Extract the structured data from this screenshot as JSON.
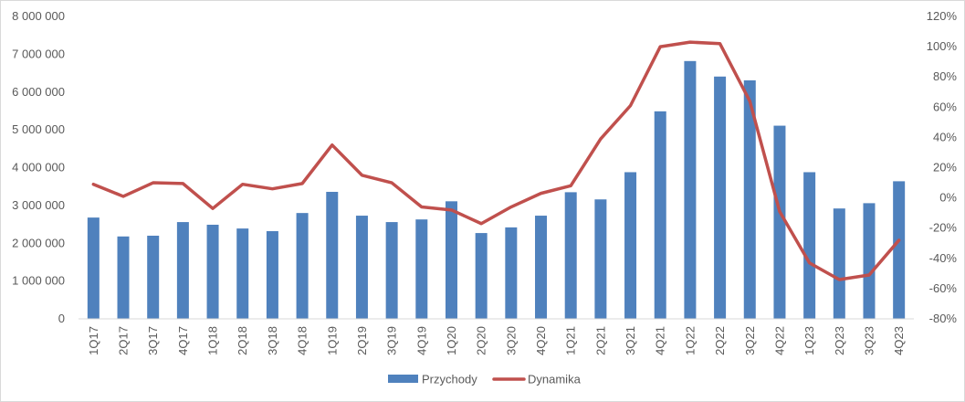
{
  "chart_data": {
    "type": "bar",
    "categories": [
      "1Q17",
      "2Q17",
      "3Q17",
      "4Q17",
      "1Q18",
      "2Q18",
      "3Q18",
      "4Q18",
      "1Q19",
      "2Q19",
      "3Q19",
      "4Q19",
      "1Q20",
      "2Q20",
      "3Q20",
      "4Q20",
      "1Q21",
      "2Q21",
      "3Q21",
      "4Q21",
      "1Q22",
      "2Q22",
      "3Q22",
      "4Q22",
      "1Q23",
      "2Q23",
      "3Q23",
      "4Q23"
    ],
    "series": [
      {
        "name": "Przychody",
        "type": "bar",
        "axis": "left",
        "color": "#4F81BD",
        "values": [
          2680000,
          2180000,
          2200000,
          2560000,
          2490000,
          2390000,
          2320000,
          2800000,
          3360000,
          2730000,
          2560000,
          2630000,
          3110000,
          2270000,
          2420000,
          2730000,
          3350000,
          3160000,
          3880000,
          5490000,
          6820000,
          6410000,
          6310000,
          5110000,
          3880000,
          2920000,
          3060000,
          3640000
        ]
      },
      {
        "name": "Dynamika",
        "type": "line",
        "axis": "right",
        "color": "#C0504D",
        "values": [
          0.09,
          0.01,
          0.1,
          0.095,
          -0.07,
          0.09,
          0.06,
          0.095,
          0.35,
          0.15,
          0.1,
          -0.06,
          -0.08,
          -0.17,
          -0.06,
          0.03,
          0.08,
          0.39,
          0.61,
          1.0,
          1.03,
          1.02,
          0.64,
          -0.09,
          -0.43,
          -0.54,
          -0.51,
          -0.28
        ]
      }
    ],
    "ylim": [
      0,
      8000000
    ],
    "y_ticks": [
      0,
      1000000,
      2000000,
      3000000,
      4000000,
      5000000,
      6000000,
      7000000,
      8000000
    ],
    "y_tick_labels": [
      "0",
      "1 000 000",
      "2 000 000",
      "3 000 000",
      "4 000 000",
      "5 000 000",
      "6 000 000",
      "7 000 000",
      "8 000 000"
    ],
    "y2lim": [
      -0.8,
      1.2
    ],
    "y2_ticks": [
      -0.8,
      -0.6,
      -0.4,
      -0.2,
      0,
      0.2,
      0.4,
      0.6,
      0.8,
      1.0,
      1.2
    ],
    "y2_tick_labels": [
      "-80%",
      "-60%",
      "-40%",
      "-20%",
      "0%",
      "20%",
      "40%",
      "60%",
      "80%",
      "100%",
      "120%"
    ],
    "grid": false,
    "legend_position": "bottom-center",
    "legend": [
      {
        "label": "Przychody",
        "marker": "box",
        "color": "#4F81BD"
      },
      {
        "label": "Dynamika",
        "marker": "line",
        "color": "#C0504D"
      }
    ],
    "axis_color": "#d9d9d9",
    "tick_color": "#595959"
  }
}
